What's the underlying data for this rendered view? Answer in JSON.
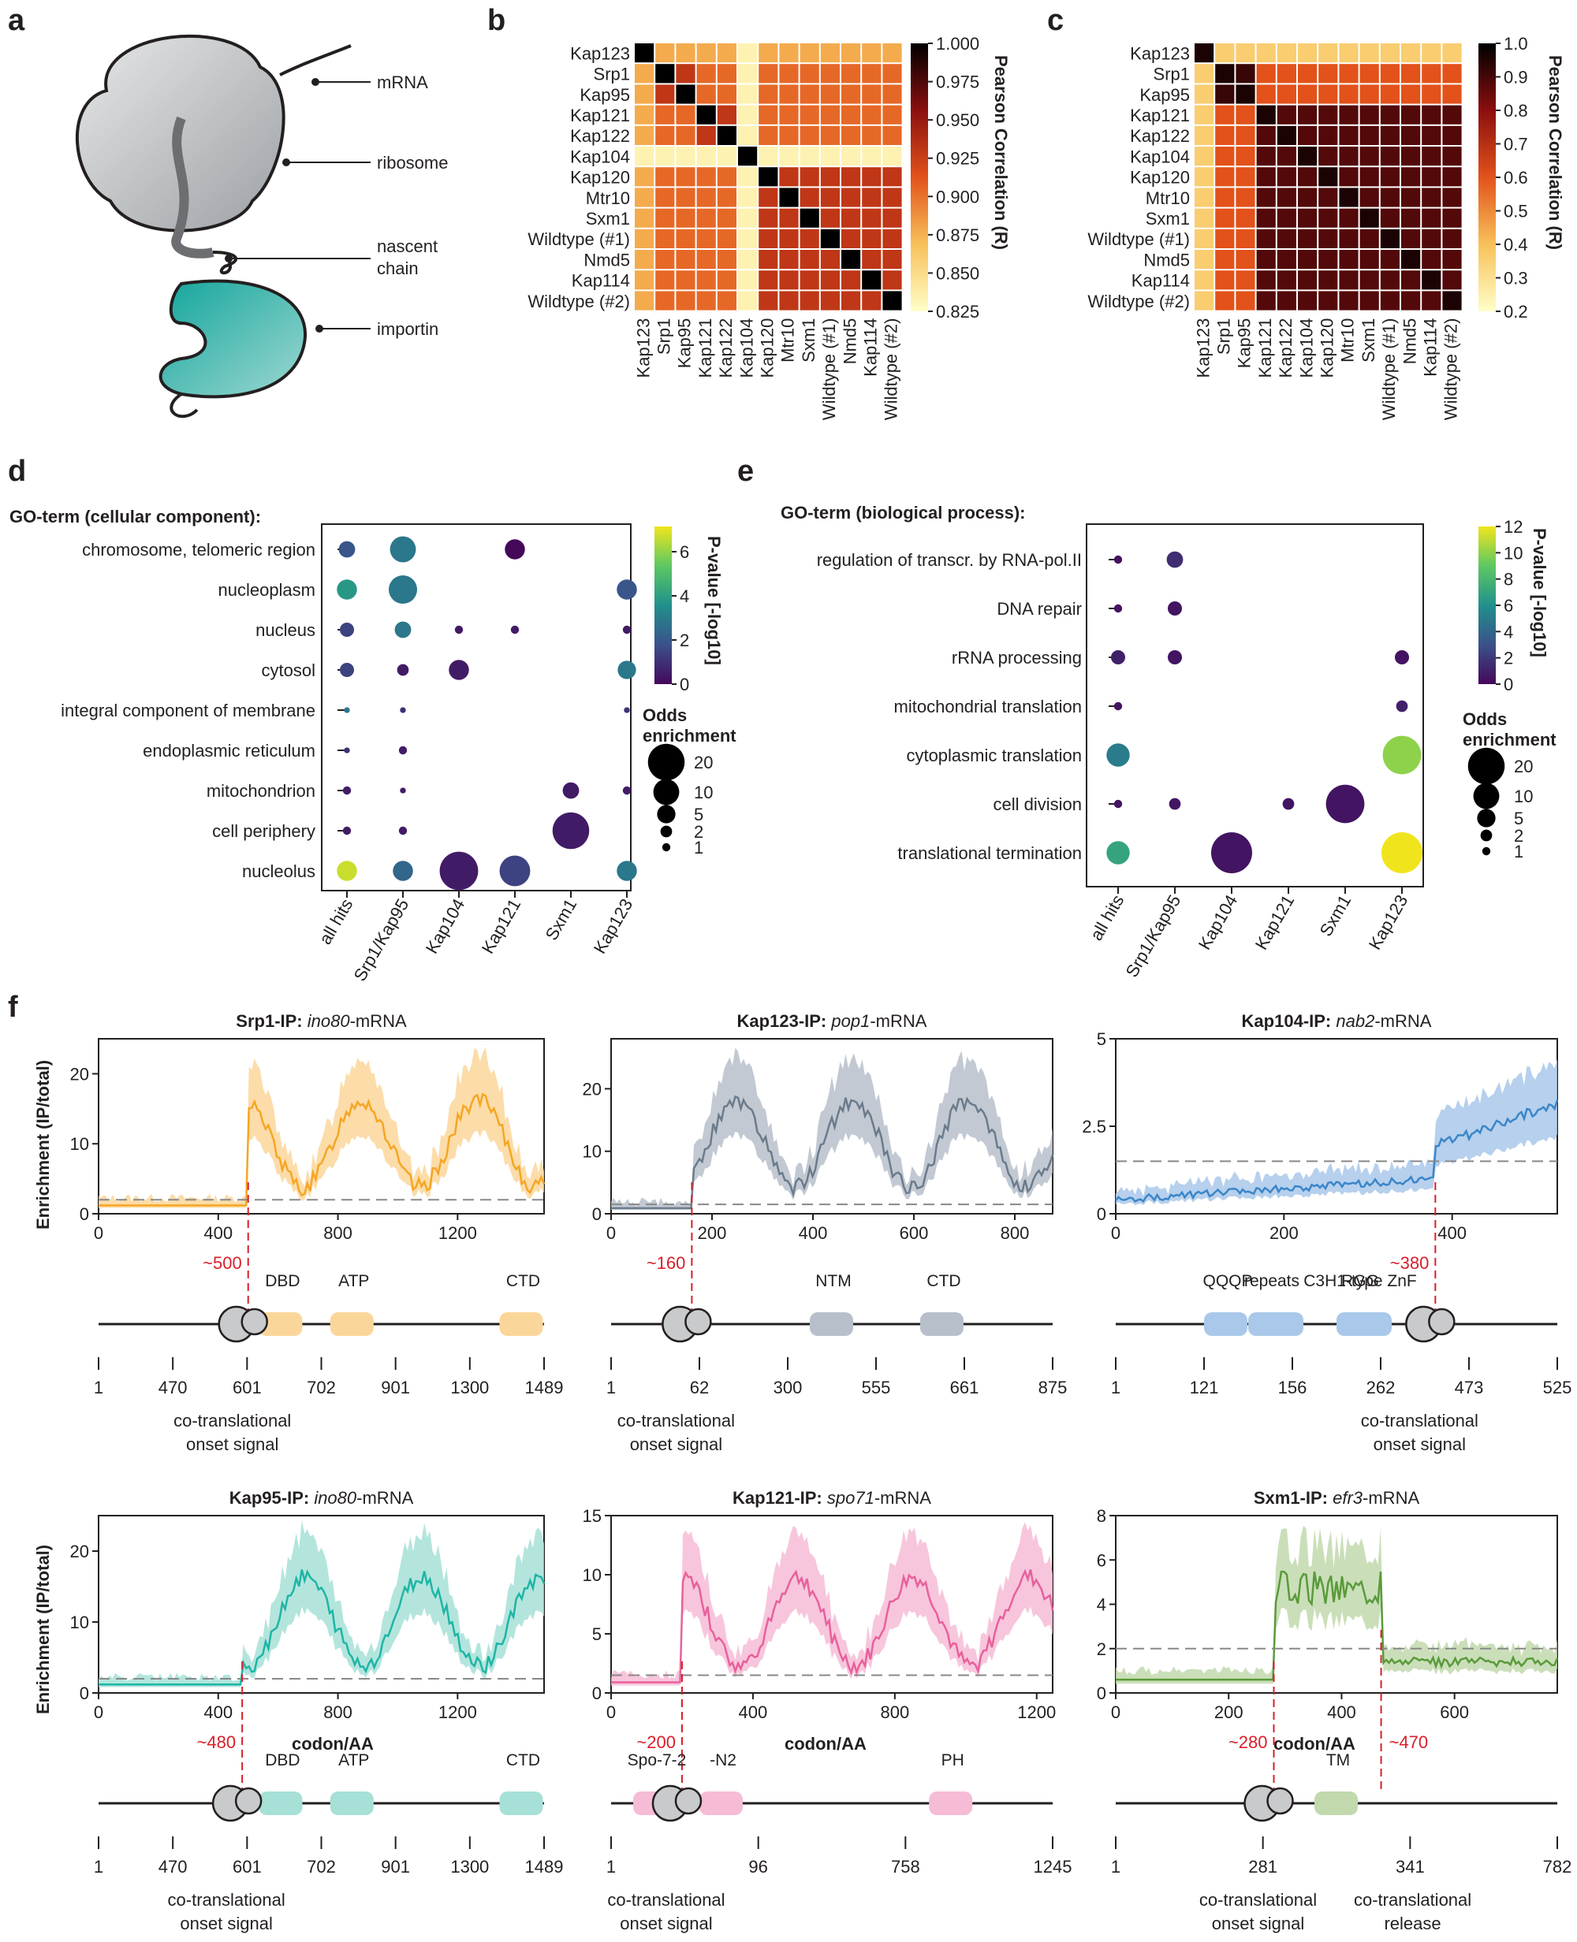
{
  "panels": {
    "a": {
      "letter": "a",
      "labels": [
        "mRNA",
        "ribosome",
        "nascent",
        "chain",
        "importin"
      ]
    },
    "b": {
      "letter": "b",
      "row_labels": [
        "Kap123",
        "Srp1",
        "Kap95",
        "Kap121",
        "Kap122",
        "Kap104",
        "Kap120",
        "Mtr10",
        "Sxm1",
        "Wildtype (#1)",
        "Nmd5",
        "Kap114",
        "Wildtype (#2)"
      ],
      "col_labels": [
        "Kap123",
        "Srp1",
        "Kap95",
        "Kap121",
        "Kap122",
        "Kap104",
        "Kap120",
        "Mtr10",
        "Sxm1",
        "Wildtype (#1)",
        "Nmd5",
        "Kap114",
        "Wildtype (#2)"
      ],
      "colorbar_label": "Pearson Correlation (R)",
      "colorbar_ticks": [
        "1.000",
        "0.975",
        "0.950",
        "0.925",
        "0.900",
        "0.875",
        "0.850",
        "0.825"
      ]
    },
    "c": {
      "letter": "c",
      "row_labels": [
        "Kap123",
        "Srp1",
        "Kap95",
        "Kap121",
        "Kap122",
        "Kap104",
        "Kap120",
        "Mtr10",
        "Sxm1",
        "Wildtype (#1)",
        "Nmd5",
        "Kap114",
        "Wildtype (#2)"
      ],
      "col_labels": [
        "Kap123",
        "Srp1",
        "Kap95",
        "Kap121",
        "Kap122",
        "Kap104",
        "Kap120",
        "Mtr10",
        "Sxm1",
        "Wildtype (#1)",
        "Nmd5",
        "Kap114",
        "Wildtype (#2)"
      ],
      "colorbar_label": "Pearson Correlation (R)",
      "colorbar_ticks": [
        "1.0",
        "0.9",
        "0.8",
        "0.7",
        "0.6",
        "0.5",
        "0.4",
        "0.3",
        "0.2"
      ]
    },
    "d": {
      "letter": "d",
      "title": "GO-term (cellular component):",
      "terms": [
        "chromosome, telomeric region",
        "nucleoplasm",
        "nucleus",
        "cytosol",
        "integral component of membrane",
        "endoplasmic reticulum",
        "mitochondrion",
        "cell periphery",
        "nucleolus"
      ],
      "groups": [
        "all hits",
        "Srp1/Kap95",
        "Kap104",
        "Kap121",
        "Sxm1",
        "Kap123"
      ],
      "colorbar_label": "P-value [-log10]",
      "colorbar_ticks": [
        "6",
        "4",
        "2",
        "0"
      ],
      "size_legend_title": [
        "Odds",
        "enrichment"
      ],
      "size_legend_values": [
        "20",
        "10",
        "5",
        "2",
        "1"
      ]
    },
    "e": {
      "letter": "e",
      "title": "GO-term (biological process):",
      "terms": [
        "regulation of transcr. by RNA-pol.II",
        "DNA repair",
        "rRNA processing",
        "mitochondrial translation",
        "cytoplasmic translation",
        "cell division",
        "translational termination"
      ],
      "groups": [
        "all hits",
        "Srp1/Kap95",
        "Kap104",
        "Kap121",
        "Sxm1",
        "Kap123"
      ],
      "colorbar_label": "P-value [-log10]",
      "colorbar_ticks": [
        "12",
        "10",
        "8",
        "6",
        "4",
        "2",
        "0"
      ],
      "size_legend_title": [
        "Odds",
        "enrichment"
      ],
      "size_legend_values": [
        "20",
        "10",
        "5",
        "2",
        "1"
      ]
    },
    "f": {
      "letter": "f",
      "ylabel": "Enrichment (IP/total)",
      "xlabel": "codon/AA",
      "plots": [
        {
          "title_bold": "Srp1-IP:",
          "title_ital": "ino80",
          "title_rest": "-mRNA",
          "color": "#f5a623",
          "band": "#fbd69a",
          "yticks": [
            "0",
            "10",
            "20"
          ],
          "xticks": [
            "0",
            "400",
            "800",
            "1200"
          ],
          "onset": "~500",
          "domains": [
            "DBD",
            "ATP",
            "CTD"
          ],
          "positions": [
            "1",
            "470",
            "601",
            "702",
            "901",
            "1300",
            "1489"
          ],
          "note": [
            "co-translational",
            "onset signal"
          ]
        },
        {
          "title_bold": "Kap123-IP:",
          "title_ital": "pop1",
          "title_rest": "-mRNA",
          "color": "#6b7b8c",
          "band": "#b7c0ca",
          "yticks": [
            "0",
            "10",
            "20"
          ],
          "xticks": [
            "0",
            "200",
            "400",
            "600",
            "800"
          ],
          "onset": "~160",
          "domains": [
            "NTM",
            "CTD"
          ],
          "positions": [
            "1",
            "62",
            "300",
            "555",
            "661",
            "875"
          ],
          "note": [
            "co-translational",
            "onset signal"
          ]
        },
        {
          "title_bold": "Kap104-IP:",
          "title_ital": "nab2",
          "title_rest": "-mRNA",
          "color": "#3b86c8",
          "band": "#a9c8ea",
          "yticks": [
            "0",
            "2.5",
            "5"
          ],
          "xticks": [
            "0",
            "200",
            "400"
          ],
          "onset": "~380",
          "domains": [
            "QQQP",
            "repeats",
            "RGG",
            "C3H1-type ZnF"
          ],
          "positions": [
            "1",
            "121",
            "156",
            "262",
            "473",
            "525"
          ],
          "note": [
            "co-translational",
            "onset signal"
          ]
        },
        {
          "title_bold": "Kap95-IP:",
          "title_ital": "ino80",
          "title_rest": "-mRNA",
          "color": "#1fb5a5",
          "band": "#a6e0d7",
          "yticks": [
            "0",
            "10",
            "20"
          ],
          "xticks": [
            "0",
            "400",
            "800",
            "1200"
          ],
          "onset": "~480",
          "domains": [
            "DBD",
            "ATP",
            "CTD"
          ],
          "positions": [
            "1",
            "470",
            "601",
            "702",
            "901",
            "1300",
            "1489"
          ],
          "note": [
            "co-translational",
            "onset signal"
          ]
        },
        {
          "title_bold": "Kap121-IP:",
          "title_ital": "spo71",
          "title_rest": "-mRNA",
          "color": "#e8609c",
          "band": "#f6bcd6",
          "yticks": [
            "0",
            "5",
            "10",
            "15"
          ],
          "xticks": [
            "0",
            "400",
            "800",
            "1200"
          ],
          "onset": "~200",
          "domains": [
            "Spo-7-2",
            "-N2",
            "PH"
          ],
          "positions": [
            "1",
            "96",
            "758",
            "1245"
          ],
          "note": [
            "co-translational",
            "onset signal"
          ]
        },
        {
          "title_bold": "Sxm1-IP:",
          "title_ital": "efr3",
          "title_rest": "-mRNA",
          "color": "#5a9a3a",
          "band": "#c1d9ad",
          "yticks": [
            "0",
            "2",
            "4",
            "6",
            "8"
          ],
          "xticks": [
            "0",
            "200",
            "400",
            "600"
          ],
          "onset": "~280",
          "onset2": "~470",
          "domains": [
            "TM"
          ],
          "positions": [
            "1",
            "281",
            "341",
            "782"
          ],
          "note": [
            "co-translational",
            "onset signal"
          ],
          "note2": [
            "co-translational",
            "release"
          ]
        }
      ]
    }
  },
  "colors": {
    "heat_high": "#000000",
    "heat_mid": "#d8401a",
    "heat_low": "#fffec8",
    "viridis_low": "#44085a",
    "viridis_high": "#f0e51d",
    "onset_red": "#d8202a"
  }
}
